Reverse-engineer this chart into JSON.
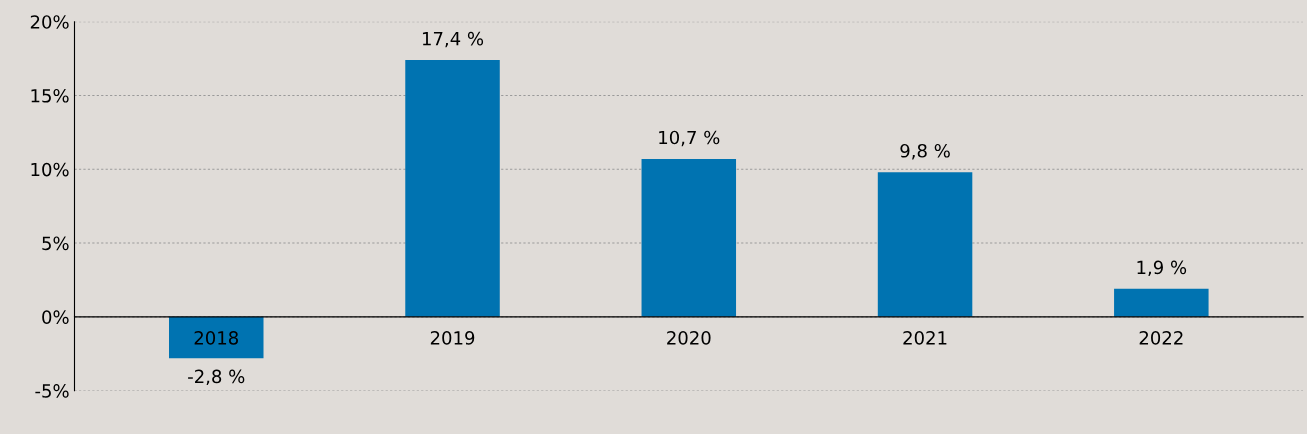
{
  "chart_data": {
    "type": "bar",
    "categories": [
      "2018",
      "2019",
      "2020",
      "2021",
      "2022"
    ],
    "series": [
      {
        "color": "#0073b1",
        "values": [
          -2.8,
          17.4,
          10.7,
          9.8,
          1.9
        ],
        "value_labels": [
          "-2,8 %",
          "17,4 %",
          "10,7 %",
          "9,8 %",
          "1,9 %"
        ]
      }
    ],
    "ylim": [
      -5,
      20
    ],
    "yticks": [
      {
        "value": -5,
        "label": "-5%"
      },
      {
        "value": 0,
        "label": "0%"
      },
      {
        "value": 5,
        "label": "5%"
      },
      {
        "value": 10,
        "label": "10%"
      },
      {
        "value": 15,
        "label": "15%"
      },
      {
        "value": 20,
        "label": "20%"
      }
    ],
    "grid": "y"
  }
}
